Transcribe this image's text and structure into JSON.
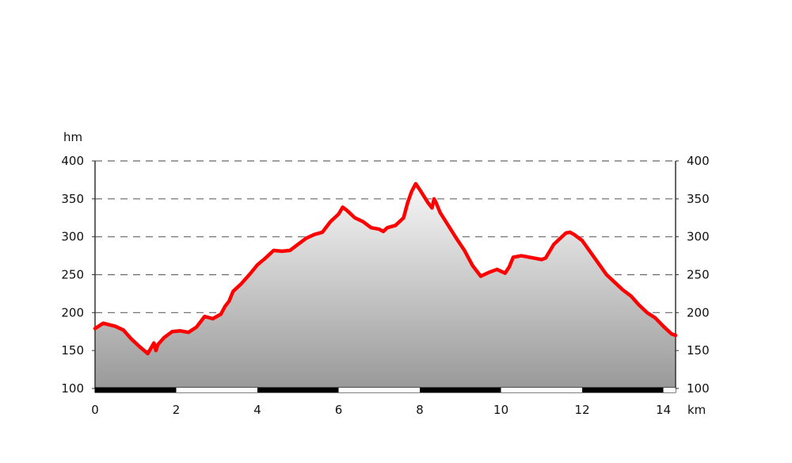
{
  "chart_data": {
    "type": "area",
    "title": "",
    "ylabel": "hm",
    "xlabel": "km",
    "xlim": [
      0,
      14.3
    ],
    "ylim": [
      100,
      400
    ],
    "x_ticks": [
      0,
      2,
      4,
      6,
      8,
      10,
      12,
      14
    ],
    "y_ticks": [
      100,
      150,
      200,
      250,
      300,
      350,
      400
    ],
    "x_tick_labels": [
      "0",
      "2",
      "4",
      "6",
      "8",
      "10",
      "12",
      "14"
    ],
    "y_tick_labels": [
      "100",
      "150",
      "200",
      "250",
      "300",
      "350",
      "400"
    ],
    "grid": "horizontal-dashed",
    "colors": {
      "line": "#ff0000",
      "fill_top": "#f7f7f7",
      "fill_bottom": "#999999",
      "grid": "#666666"
    },
    "series": [
      {
        "x": [
          0.0,
          0.2,
          0.5,
          0.7,
          0.9,
          1.1,
          1.3,
          1.45,
          1.5,
          1.55,
          1.7,
          1.9,
          2.1,
          2.3,
          2.5,
          2.7,
          2.9,
          3.1,
          3.2,
          3.3,
          3.4,
          3.6,
          3.8,
          4.0,
          4.2,
          4.4,
          4.6,
          4.8,
          5.0,
          5.2,
          5.4,
          5.6,
          5.8,
          5.9,
          6.0,
          6.1,
          6.2,
          6.4,
          6.6,
          6.8,
          7.0,
          7.1,
          7.2,
          7.4,
          7.6,
          7.7,
          7.8,
          7.9,
          8.0,
          8.2,
          8.3,
          8.35,
          8.4,
          8.5,
          8.7,
          8.9,
          9.1,
          9.3,
          9.5,
          9.7,
          9.9,
          10.1,
          10.2,
          10.3,
          10.5,
          10.8,
          11.0,
          11.1,
          11.3,
          11.5,
          11.6,
          11.7,
          11.8,
          12.0,
          12.2,
          12.4,
          12.6,
          12.8,
          13.0,
          13.2,
          13.4,
          13.6,
          13.8,
          14.0,
          14.2,
          14.3
        ],
        "y": [
          179,
          186,
          182,
          177,
          165,
          155,
          146,
          160,
          150,
          158,
          167,
          175,
          176,
          174,
          181,
          195,
          192,
          198,
          208,
          215,
          228,
          238,
          250,
          263,
          272,
          282,
          281,
          282,
          290,
          298,
          303,
          306,
          320,
          325,
          330,
          339,
          335,
          325,
          320,
          312,
          310,
          307,
          312,
          315,
          325,
          345,
          360,
          370,
          362,
          345,
          338,
          350,
          345,
          332,
          315,
          298,
          282,
          262,
          248,
          253,
          257,
          252,
          260,
          273,
          275,
          272,
          270,
          272,
          290,
          300,
          305,
          306,
          303,
          295,
          280,
          265,
          250,
          240,
          230,
          222,
          210,
          200,
          193,
          182,
          172,
          170
        ]
      }
    ]
  }
}
